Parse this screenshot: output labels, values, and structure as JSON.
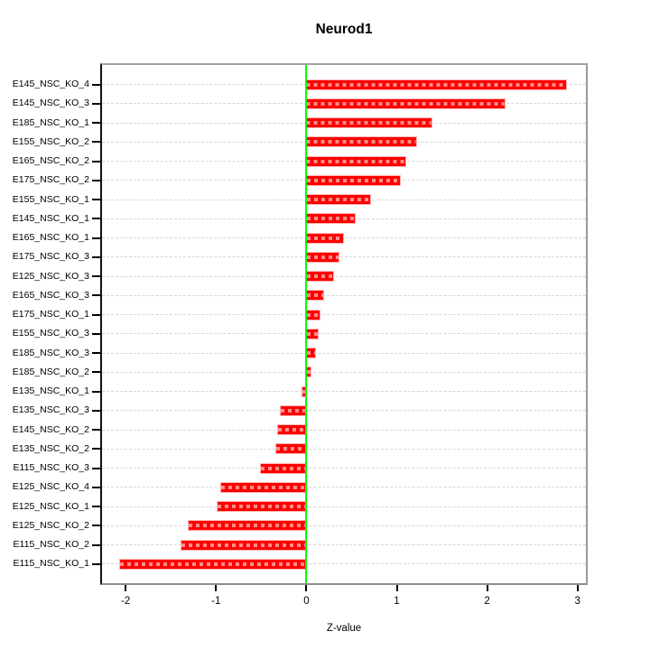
{
  "chart_data": {
    "type": "bar",
    "orientation": "horizontal",
    "title": "Neurod1",
    "xlabel": "Z-value",
    "ylabel": "",
    "categories": [
      "E145_NSC_KO_4",
      "E145_NSC_KO_3",
      "E185_NSC_KO_1",
      "E155_NSC_KO_2",
      "E165_NSC_KO_2",
      "E175_NSC_KO_2",
      "E155_NSC_KO_1",
      "E145_NSC_KO_1",
      "E165_NSC_KO_1",
      "E175_NSC_KO_3",
      "E125_NSC_KO_3",
      "E165_NSC_KO_3",
      "E175_NSC_KO_1",
      "E155_NSC_KO_3",
      "E185_NSC_KO_3",
      "E185_NSC_KO_2",
      "E135_NSC_KO_1",
      "E135_NSC_KO_3",
      "E145_NSC_KO_2",
      "E135_NSC_KO_2",
      "E115_NSC_KO_3",
      "E125_NSC_KO_4",
      "E125_NSC_KO_1",
      "E125_NSC_KO_2",
      "E115_NSC_KO_2",
      "E115_NSC_KO_1"
    ],
    "values": [
      2.88,
      2.2,
      1.39,
      1.22,
      1.1,
      1.05,
      0.72,
      0.55,
      0.42,
      0.37,
      0.31,
      0.2,
      0.16,
      0.14,
      0.11,
      0.06,
      -0.05,
      -0.29,
      -0.32,
      -0.34,
      -0.51,
      -0.95,
      -0.99,
      -1.31,
      -1.39,
      -2.07
    ],
    "x_ticks": [
      -2,
      -1,
      0,
      1,
      2,
      3
    ],
    "xlim": [
      -2.27,
      3.1
    ],
    "zero_reference_line": 0,
    "grid": "horizontal dashed line per category",
    "legend_position": "none"
  },
  "colors": {
    "bar_fill": "#fe0000",
    "bar_border": "#ffb3b3",
    "bar_dash_overlay": "rgba(255,255,255,0.55)",
    "zero_line": "#00fe00",
    "grid_line": "#d6d6d6",
    "frame": "#9a9a9a",
    "axis_text": "#000000",
    "background": "#ffffff"
  }
}
